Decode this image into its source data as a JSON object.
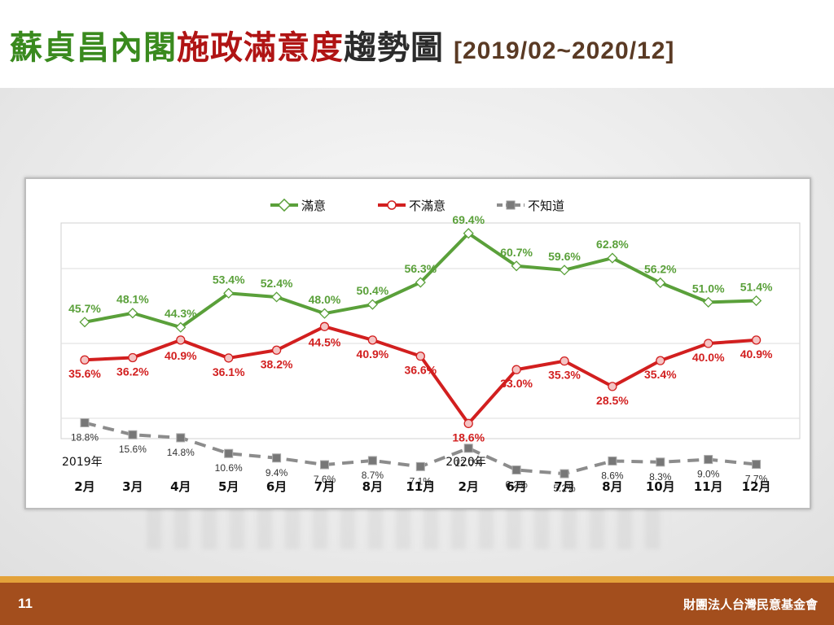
{
  "title": {
    "part1": "蘇貞昌內閣",
    "part2": "施政滿意度",
    "part3": "趨勢圖",
    "range": "[2019/02~2020/12]"
  },
  "footer": {
    "page_number": "11",
    "organization": "財團法人台灣民意基金會"
  },
  "chart_data": {
    "type": "line",
    "categories": [
      "2月",
      "3月",
      "4月",
      "5月",
      "6月",
      "7月",
      "8月",
      "11月",
      "2月",
      "6月",
      "7月",
      "8月",
      "10月",
      "11月",
      "12月"
    ],
    "year_labels": [
      {
        "index": 0,
        "label": "2019年"
      },
      {
        "index": 8,
        "label": "2020年"
      }
    ],
    "series": [
      {
        "name": "滿意",
        "color": "#5aa03a",
        "values": [
          45.7,
          48.1,
          44.3,
          53.4,
          52.4,
          48.0,
          50.4,
          56.3,
          69.4,
          60.7,
          59.6,
          62.8,
          56.2,
          51.0,
          51.4
        ],
        "labels": [
          "45.7%",
          "48.1%",
          "44.3%",
          "53.4%",
          "52.4%",
          "48.0%",
          "50.4%",
          "56.3%",
          "69.4%",
          "60.7%",
          "59.6%",
          "62.8%",
          "56.2%",
          "51.0%",
          "51.4%"
        ]
      },
      {
        "name": "不滿意",
        "color": "#d21f1f",
        "values": [
          35.6,
          36.2,
          40.9,
          36.1,
          38.2,
          44.5,
          40.9,
          36.6,
          18.6,
          33.0,
          35.3,
          28.5,
          35.4,
          40.0,
          40.9
        ],
        "labels": [
          "35.6%",
          "36.2%",
          "40.9%",
          "36.1%",
          "38.2%",
          "44.5%",
          "40.9%",
          "36.6%",
          "18.6%",
          "33.0%",
          "35.3%",
          "28.5%",
          "35.4%",
          "40.0%",
          "40.9%"
        ]
      },
      {
        "name": "不知道",
        "color": "#8c8c8c",
        "values": [
          18.8,
          15.6,
          14.8,
          10.6,
          9.4,
          7.6,
          8.7,
          7.1,
          12.0,
          6.2,
          5.2,
          8.6,
          8.3,
          9.0,
          7.7
        ],
        "labels": [
          "18.8%",
          "15.6%",
          "14.8%",
          "10.6%",
          "9.4%",
          "7.6%",
          "8.7%",
          "7.1%",
          "12.0%",
          "6.2%",
          "5.2%",
          "8.6%",
          "8.3%",
          "9.0%",
          "7.7%"
        ]
      }
    ],
    "ylim": [
      0,
      80
    ],
    "legend_position": "top-center",
    "grid": true
  }
}
